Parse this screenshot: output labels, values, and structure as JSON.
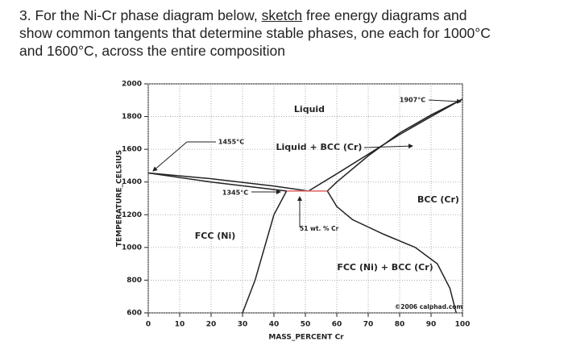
{
  "question": {
    "line1": [
      "3. For the Ni-Cr phase diagram below, ",
      "sketch",
      " free energy diagrams and"
    ],
    "line2": "show common tangents that determine stable phases, one each for 1000°C",
    "line3": "and 1600°C, across the entire composition"
  },
  "chart_data": {
    "type": "line",
    "x_label": "MASS_PERCENT Cr",
    "y_label": "TEMPERATURE_CELSIUS",
    "xlim": [
      0,
      100
    ],
    "ylim": [
      600,
      2000
    ],
    "xticks": [
      0,
      10,
      20,
      30,
      40,
      50,
      60,
      70,
      80,
      90,
      100
    ],
    "yticks": [
      600,
      800,
      1000,
      1200,
      1400,
      1600,
      1800,
      2000
    ],
    "grid": true,
    "annotations": [
      "Liquid",
      "1907°C",
      "1455°C",
      "Liquid + BCC (Cr)",
      "1345°C",
      "BCC (Cr)",
      "FCC (Ni)",
      "51 wt. % Cr",
      "FCC (Ni) + BCC (Cr)",
      "©2006 calphad.com"
    ],
    "series": [
      {
        "color": "#222222",
        "x": [
          0,
          20,
          40,
          51
        ],
        "values": [
          1455,
          1420,
          1375,
          1345
        ]
      },
      {
        "color": "#222222",
        "x": [
          0,
          20,
          44
        ],
        "values": [
          1455,
          1400,
          1345
        ]
      },
      {
        "color": "#222222",
        "x": [
          51,
          60,
          70,
          80,
          90,
          100
        ],
        "values": [
          1345,
          1450,
          1570,
          1690,
          1800,
          1907
        ]
      },
      {
        "color": "#222222",
        "x": [
          57,
          60,
          70,
          80,
          90,
          100
        ],
        "values": [
          1345,
          1400,
          1560,
          1700,
          1810,
          1907
        ]
      },
      {
        "color": "#222222",
        "x": [
          44,
          40,
          37,
          34,
          30
        ],
        "values": [
          1345,
          1200,
          1000,
          800,
          600
        ]
      },
      {
        "color": "#222222",
        "x": [
          57,
          60,
          65,
          75,
          85,
          92,
          96,
          98
        ],
        "values": [
          1345,
          1250,
          1170,
          1080,
          1000,
          900,
          750,
          600
        ]
      },
      {
        "color": "#e06060",
        "x": [
          44,
          57
        ],
        "values": [
          1345,
          1345
        ]
      }
    ]
  }
}
